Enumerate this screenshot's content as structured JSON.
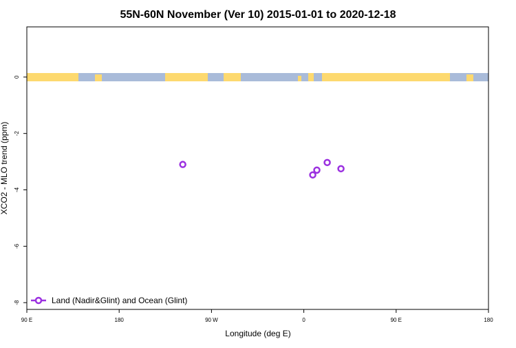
{
  "chart_data": {
    "type": "scatter",
    "title": "55N-60N November (Ver 10)   2015-01-01 to 2020-12-18",
    "x_label": "Longitude (deg E)",
    "y_label": "XCO2 - MLO trend (ppm)",
    "xlim": [
      -270,
      180
    ],
    "ylim": [
      -8.24,
      1.78
    ],
    "xticks": [
      {
        "value": -270,
        "label": "90 E"
      },
      {
        "value": -180,
        "label": "180"
      },
      {
        "value": -90,
        "label": "90 W"
      },
      0,
      {
        "value": 90,
        "label": "90 E"
      },
      180
    ],
    "yticks": [
      0,
      -2,
      -4,
      -6,
      -8
    ],
    "legend_position": "bottom-left",
    "series": [
      {
        "name": "Land (Nadir&Glint) and Ocean (Glint)",
        "color": "#9b30e0",
        "x": [
          -118,
          8.7,
          12.7,
          22.8,
          36.2
        ],
        "values": [
          -3.1,
          -3.47,
          -3.3,
          -3.03,
          -3.25
        ]
      }
    ]
  }
}
